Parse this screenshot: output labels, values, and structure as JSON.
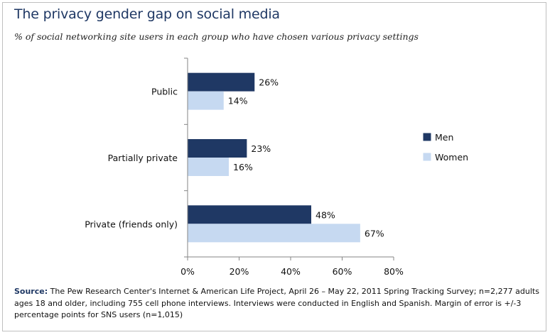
{
  "title": "The privacy gender gap on social media",
  "subtitle": "% of social networking site users in each group who have chosen various privacy settings",
  "source": {
    "label": "Source:",
    "text": "The Pew Research Center's Internet & American Life Project, April 26 – May 22, 2011 Spring Tracking Survey; n=2,277 adults ages 18 and older, including 755 cell phone interviews. Interviews were conducted in English and Spanish. Margin of error is +/-3 percentage points for SNS users (n=1,015)"
  },
  "chart_data": {
    "type": "bar",
    "orientation": "horizontal",
    "categories": [
      "Public",
      "Partially private",
      "Private (friends only)"
    ],
    "series": [
      {
        "name": "Men",
        "values": [
          26,
          23,
          48
        ],
        "labels": [
          "26%",
          "23%",
          "48%"
        ],
        "color": "#1f3864"
      },
      {
        "name": "Women",
        "values": [
          14,
          16,
          67
        ],
        "labels": [
          "14%",
          "16%",
          "67%"
        ],
        "color": "#c6d9f1"
      }
    ],
    "xlim": [
      0,
      80
    ],
    "xticks": [
      0,
      20,
      40,
      60,
      80
    ],
    "xtick_labels": [
      "0%",
      "20%",
      "40%",
      "60%",
      "80%"
    ],
    "grid": false,
    "legend_position": "right"
  }
}
